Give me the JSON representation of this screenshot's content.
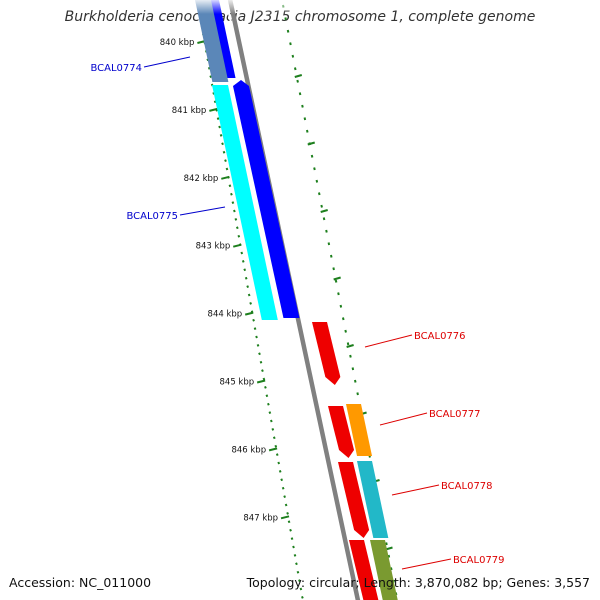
{
  "title": "Burkholderia cenocepacia J2315 chromosome 1, complete genome",
  "footer": {
    "accession": "Accession: NC_011000",
    "stats": "Topology: circular; Length: 3,870,082 bp; Genes: 3,557"
  },
  "ticks": [
    "840 kbp",
    "841 kbp",
    "842 kbp",
    "843 kbp",
    "844 kbp",
    "845 kbp",
    "846 kbp",
    "847 kbp"
  ],
  "genes": [
    {
      "name": "BCAL0774",
      "color": "#0000cc"
    },
    {
      "name": "BCAL0775",
      "color": "#0000cc"
    },
    {
      "name": "BCAL0776",
      "color": "#dd0000"
    },
    {
      "name": "BCAL0777",
      "color": "#dd0000"
    },
    {
      "name": "BCAL0778",
      "color": "#dd0000"
    },
    {
      "name": "BCAL0779",
      "color": "#dd0000"
    }
  ],
  "colors": {
    "backbone": "#808080",
    "cds_reverse": "#0000ff",
    "cds_forward": "#ee0000",
    "cog_cyan": "#00ffff",
    "cog_steelblue": "#5b87b8",
    "cog_orange": "#ff9900",
    "cog_teal": "#22b8c8",
    "cog_olive": "#7a9a30",
    "tick_green": "#1d7f1d"
  }
}
